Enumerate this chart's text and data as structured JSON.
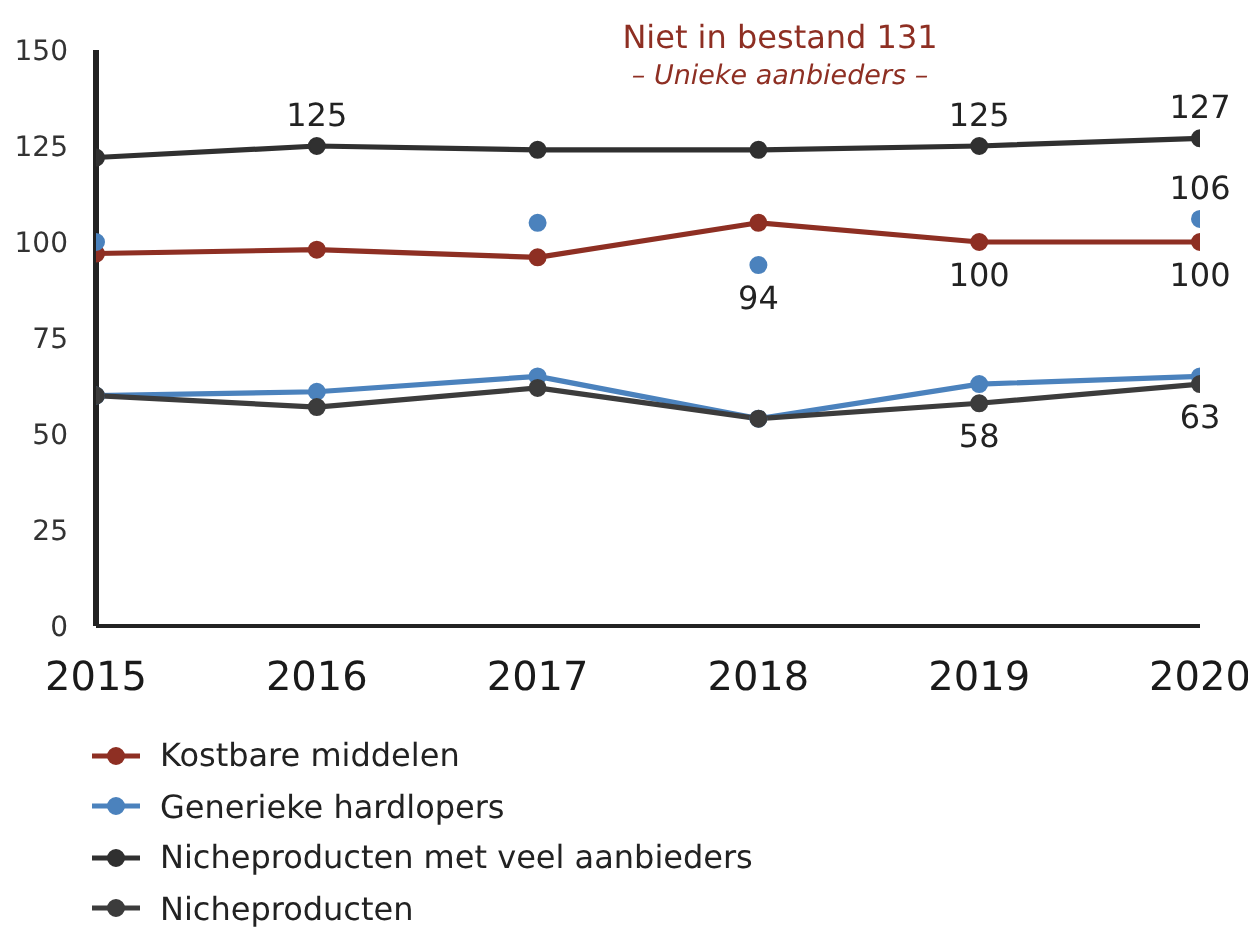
{
  "chart_data": {
    "type": "line",
    "title": "Niet in bestand 131",
    "subtitle": "– Unieke aanbieders –",
    "categories": [
      "2015",
      "2016",
      "2017",
      "2018",
      "2019",
      "2020"
    ],
    "series": [
      {
        "name": "Kostbare middelen",
        "color": "#8e2f23",
        "values": [
          97,
          98,
          96,
          105,
          100,
          100
        ],
        "value_labels": [
          null,
          null,
          null,
          null,
          "100",
          "100"
        ]
      },
      {
        "name": "Generieke hardlopers",
        "color": "#4b82bd",
        "values": [
          60,
          61,
          65,
          54,
          63,
          65
        ]
      },
      {
        "name": "Nicheproducten met veel aanbieders",
        "color": "#303030",
        "values": [
          122,
          125,
          124,
          124,
          125,
          127
        ],
        "value_labels": [
          null,
          "125",
          null,
          null,
          "125",
          "127"
        ]
      },
      {
        "name": "Nicheproducten",
        "color": "#3c3c3c",
        "values": [
          60,
          57,
          62,
          54,
          58,
          63
        ],
        "value_labels": [
          null,
          null,
          null,
          null,
          "58",
          "63"
        ]
      },
      {
        "type": "scatter",
        "color": "#4b82bd",
        "values": [
          100,
          null,
          105,
          94,
          null,
          106
        ],
        "value_labels": [
          null,
          null,
          null,
          "94",
          null,
          "106"
        ]
      }
    ],
    "ylim": [
      0,
      150
    ],
    "yticks": [
      0,
      25,
      50,
      75,
      100,
      125,
      150
    ],
    "legend": "bottom",
    "marker": "circle",
    "line_style": "solid"
  }
}
